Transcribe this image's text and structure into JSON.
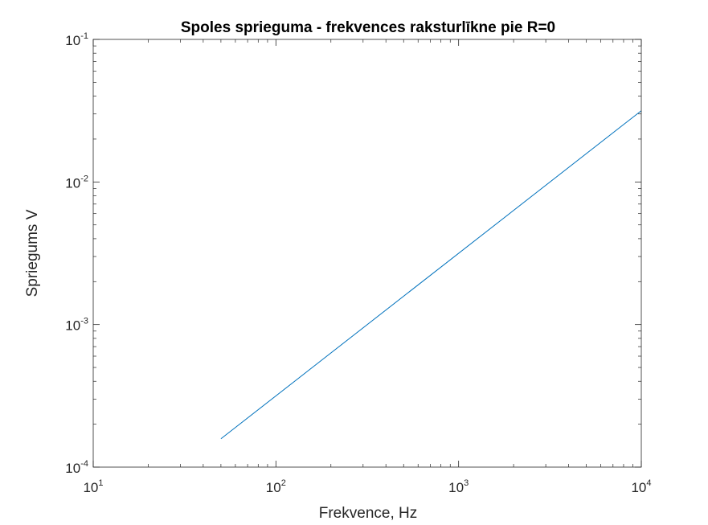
{
  "chart_data": {
    "type": "line",
    "title": "Spoles sprieguma - frekvences raksturlīkne pie R=0",
    "xlabel": "Frekvence, Hz",
    "ylabel": "Spriegums V",
    "xscale": "log",
    "yscale": "log",
    "xlim": [
      10,
      10000
    ],
    "ylim": [
      0.0001,
      0.1
    ],
    "grid": false,
    "box": true,
    "x_ticks": [
      {
        "value": 10,
        "base": "10",
        "exp": "1"
      },
      {
        "value": 100,
        "base": "10",
        "exp": "2"
      },
      {
        "value": 1000,
        "base": "10",
        "exp": "3"
      },
      {
        "value": 10000,
        "base": "10",
        "exp": "4"
      }
    ],
    "y_ticks": [
      {
        "value": 0.0001,
        "base": "10",
        "exp": "-4"
      },
      {
        "value": 0.001,
        "base": "10",
        "exp": "-3"
      },
      {
        "value": 0.01,
        "base": "10",
        "exp": "-2"
      },
      {
        "value": 0.1,
        "base": "10",
        "exp": "-1"
      }
    ],
    "series": [
      {
        "x": [
          50,
          10000
        ],
        "y": [
          0.000158,
          0.0316
        ],
        "color": "#0072BD"
      }
    ],
    "colors": {
      "axes": "#262626",
      "line": "#0072BD",
      "title": "#000000"
    }
  }
}
